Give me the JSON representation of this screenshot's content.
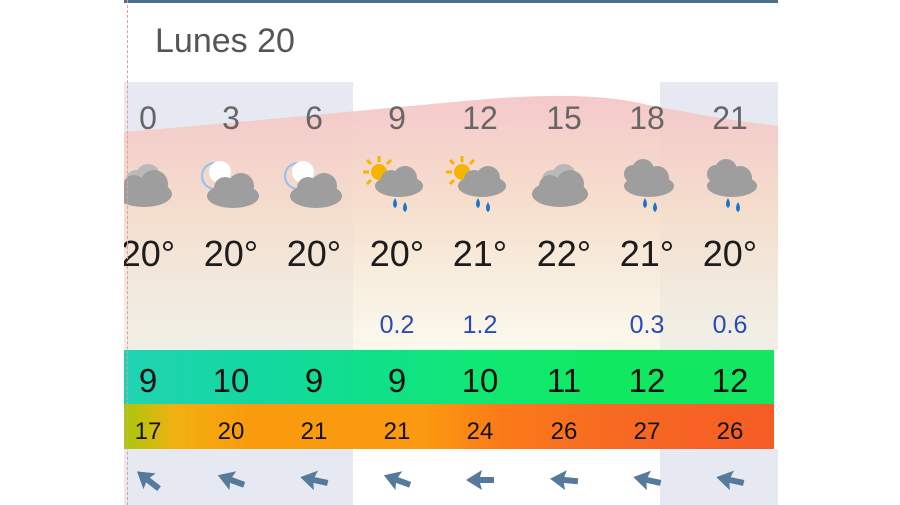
{
  "day": {
    "title": "Lunes 20"
  },
  "columns": [
    {
      "hour": "0",
      "icon": "cloudy-icon",
      "temp": "20°",
      "rain": "",
      "wind": "9",
      "gust": "17"
    },
    {
      "hour": "3",
      "icon": "moon-cloud-icon",
      "temp": "20°",
      "rain": "",
      "wind": "10",
      "gust": "20"
    },
    {
      "hour": "6",
      "icon": "moon-cloud-icon",
      "temp": "20°",
      "rain": "",
      "wind": "9",
      "gust": "21"
    },
    {
      "hour": "9",
      "icon": "sun-cloud-rain-icon",
      "temp": "20°",
      "rain": "0.2",
      "wind": "9",
      "gust": "21"
    },
    {
      "hour": "12",
      "icon": "sun-cloud-rain-icon",
      "temp": "21°",
      "rain": "1.2",
      "wind": "10",
      "gust": "24"
    },
    {
      "hour": "15",
      "icon": "cloudy-icon",
      "temp": "22°",
      "rain": "",
      "wind": "11",
      "gust": "26"
    },
    {
      "hour": "18",
      "icon": "cloud-rain-icon",
      "temp": "21°",
      "rain": "0.3",
      "wind": "12",
      "gust": "27"
    },
    {
      "hour": "21",
      "icon": "cloud-rain-icon",
      "temp": "20°",
      "rain": "0.6",
      "wind": "12",
      "gust": "26"
    }
  ],
  "colors": {
    "temp_band": "#f4c6c8",
    "rain_text": "#2a4ab8",
    "wind_band": "#10e880",
    "gust_band": "#fb8c14",
    "arrow": "#557a9c"
  }
}
